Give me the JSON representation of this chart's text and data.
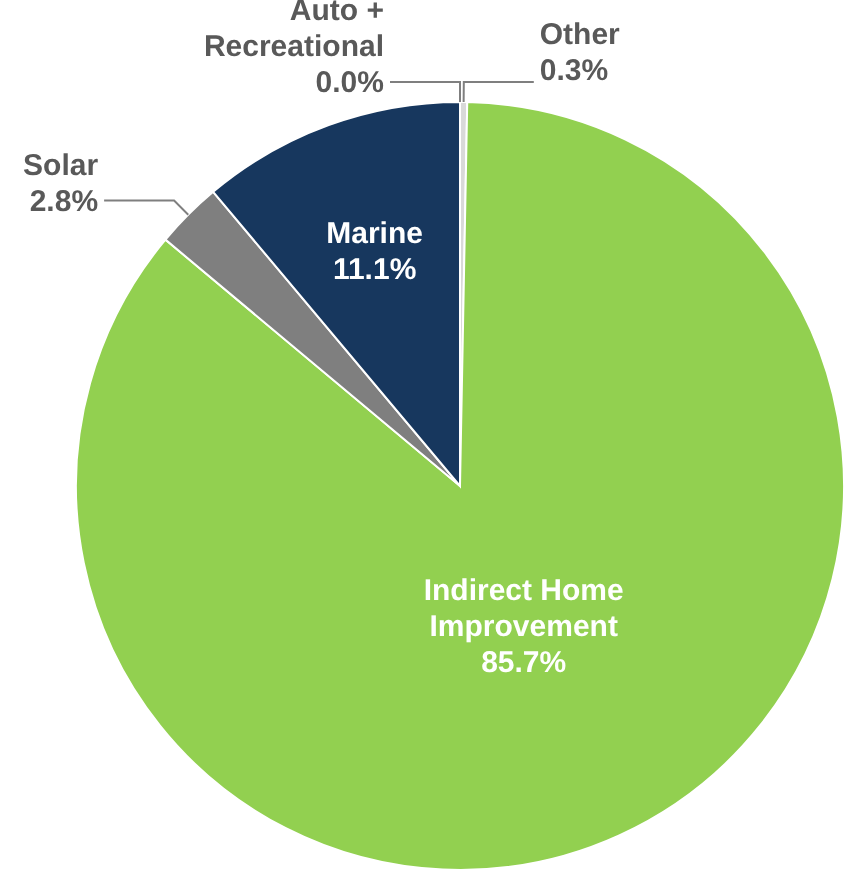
{
  "chart_data": {
    "type": "pie",
    "categories": [
      "Other",
      "Indirect Home Improvement",
      "Solar",
      "Marine",
      "Auto + Recreational"
    ],
    "values": [
      0.3,
      85.7,
      2.8,
      11.1,
      0.0
    ],
    "value_labels": [
      "0.3%",
      "85.7%",
      "2.8%",
      "11.1%",
      "0.0%"
    ],
    "colors": [
      "#d9d9d9",
      "#92d050",
      "#7f7f7f",
      "#17375e",
      "#ffffff"
    ]
  }
}
